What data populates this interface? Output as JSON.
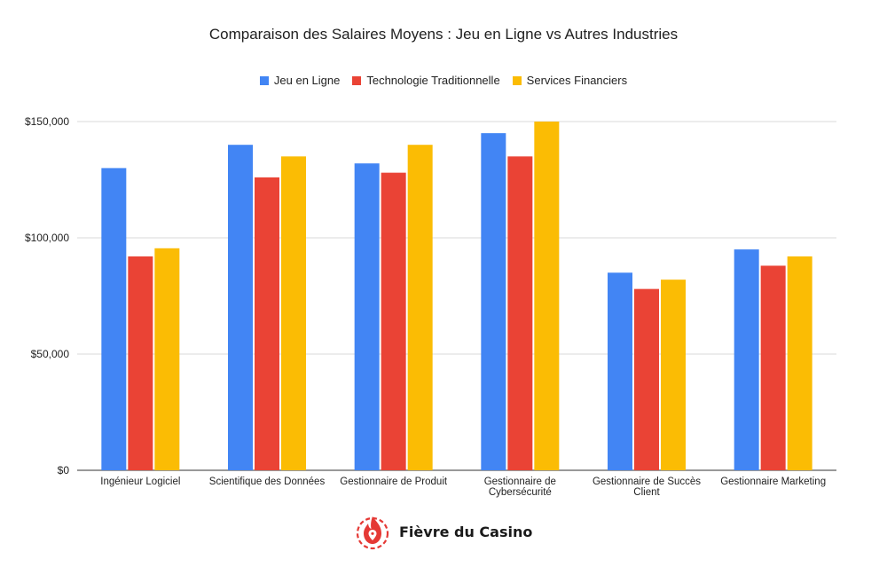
{
  "chart_data": {
    "type": "bar",
    "title": "Comparaison des Salaires Moyens : Jeu en Ligne vs Autres Industries",
    "xlabel": "",
    "ylabel": "",
    "ylim": [
      0,
      150000
    ],
    "yticks": [
      {
        "value": 0,
        "label": "$0"
      },
      {
        "value": 50000,
        "label": "$50,000"
      },
      {
        "value": 100000,
        "label": "$100,000"
      },
      {
        "value": 150000,
        "label": "$150,000"
      }
    ],
    "grid": true,
    "legend_position": "top",
    "categories": [
      [
        "Ingénieur Logiciel"
      ],
      [
        "Scientifique des Données"
      ],
      [
        "Gestionnaire de Produit"
      ],
      [
        "Gestionnaire de",
        "Cybersécurité"
      ],
      [
        "Gestionnaire de Succès",
        "Client"
      ],
      [
        "Gestionnaire Marketing"
      ]
    ],
    "series": [
      {
        "name": "Jeu en Ligne",
        "color": "#4285F4",
        "values": [
          130000,
          140000,
          132000,
          145000,
          85000,
          95000
        ]
      },
      {
        "name": "Technologie Traditionnelle",
        "color": "#EA4335",
        "values": [
          92000,
          126000,
          128000,
          135000,
          78000,
          88000
        ]
      },
      {
        "name": "Services Financiers",
        "color": "#FBBC04",
        "values": [
          95500,
          135000,
          140000,
          150000,
          82000,
          92000
        ]
      }
    ]
  },
  "brand": {
    "name": "Fièvre du Casino",
    "logo_icon": "flame-location-pin-icon",
    "logo_color": "#E53935"
  }
}
